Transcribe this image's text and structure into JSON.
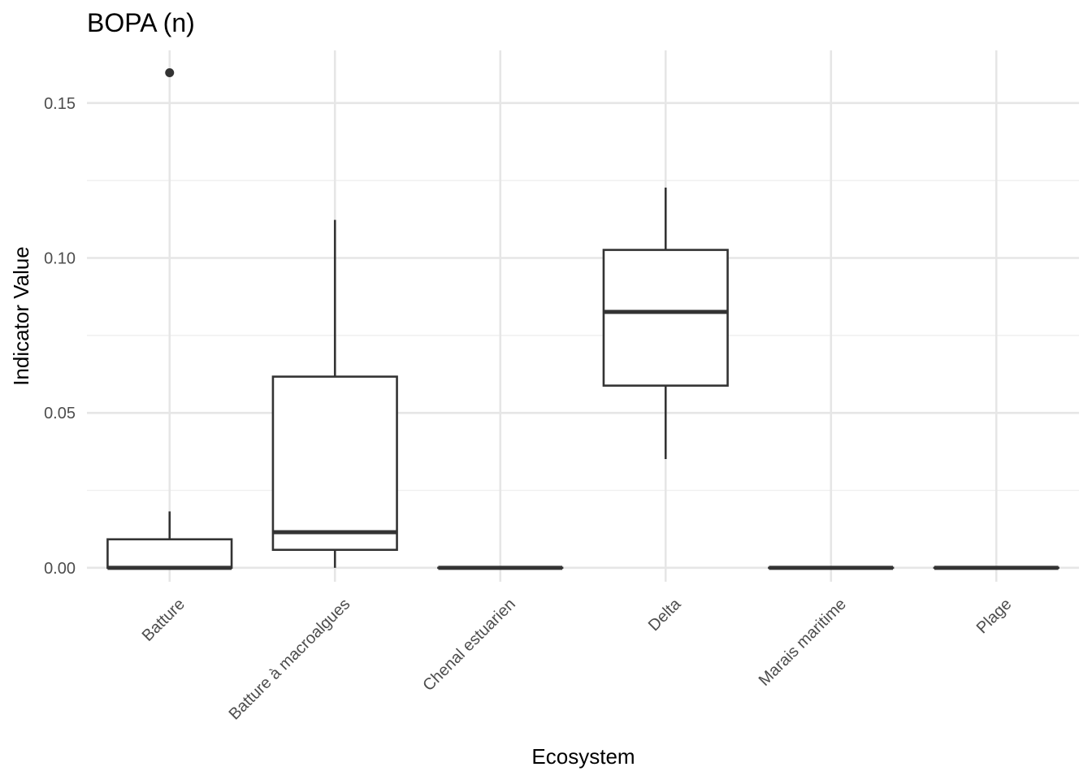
{
  "chart_data": {
    "type": "boxplot",
    "title": "BOPA (n)",
    "xlabel": "Ecosystem",
    "ylabel": "Indicator Value",
    "ylim": [
      -0.0045,
      0.167
    ],
    "y_ticks": [
      0.0,
      0.05,
      0.1,
      0.15
    ],
    "y_tick_labels": [
      "0.00",
      "0.05",
      "0.10",
      "0.15"
    ],
    "grid": true,
    "categories": [
      "Batture",
      "Batture à macroalgues",
      "Chenal estuarien",
      "Delta",
      "Marais maritime",
      "Plage"
    ],
    "boxes": [
      {
        "category": "Batture",
        "whisker_low": 0.0,
        "q1": 0.0,
        "median": 0.0,
        "q3": 0.0092,
        "whisker_high": 0.0182,
        "outliers": [
          0.1598
        ]
      },
      {
        "category": "Batture à macroalgues",
        "whisker_low": 0.0,
        "q1": 0.0058,
        "median": 0.0115,
        "q3": 0.0617,
        "whisker_high": 0.1123,
        "outliers": []
      },
      {
        "category": "Chenal estuarien",
        "whisker_low": 0.0,
        "q1": 0.0,
        "median": 0.0,
        "q3": 0.0,
        "whisker_high": 0.0,
        "outliers": []
      },
      {
        "category": "Delta",
        "whisker_low": 0.0351,
        "q1": 0.0588,
        "median": 0.0826,
        "q3": 0.1026,
        "whisker_high": 0.1227,
        "outliers": []
      },
      {
        "category": "Marais maritime",
        "whisker_low": 0.0,
        "q1": 0.0,
        "median": 0.0,
        "q3": 0.0,
        "whisker_high": 0.0,
        "outliers": []
      },
      {
        "category": "Plage",
        "whisker_low": 0.0,
        "q1": 0.0,
        "median": 0.0,
        "q3": 0.0,
        "whisker_high": 0.0,
        "outliers": []
      }
    ],
    "colors": {
      "box_line": "#333333",
      "box_fill": "#ffffff",
      "grid": "#e6e6e6",
      "tick_text": "#4d4d4d"
    }
  }
}
